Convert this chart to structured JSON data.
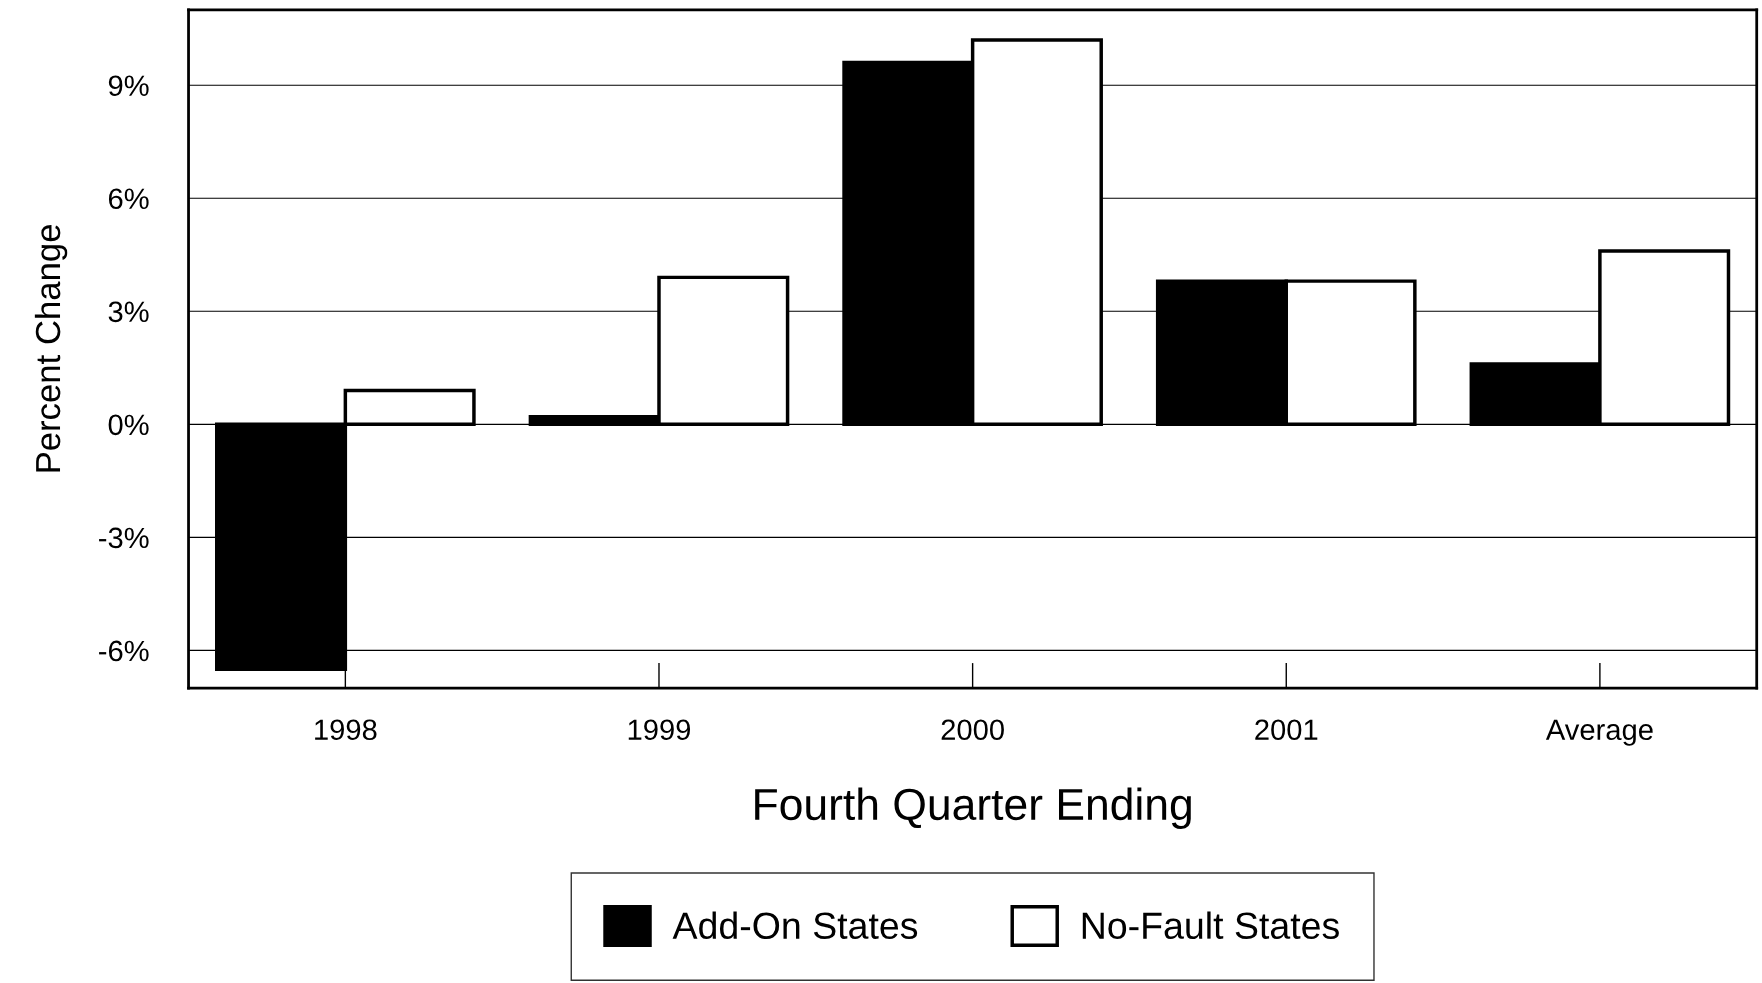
{
  "chart_data": {
    "type": "bar",
    "xlabel": "Fourth Quarter Ending",
    "ylabel": "Percent Change",
    "categories": [
      "1998",
      "1999",
      "2000",
      "2001",
      "Average"
    ],
    "series": [
      {
        "name": "Add-On States",
        "color": "#000000",
        "values": [
          -6.5,
          0.2,
          9.6,
          3.8,
          1.6
        ]
      },
      {
        "name": "No-Fault States",
        "color": "#ffffff",
        "values": [
          0.9,
          3.9,
          10.2,
          3.8,
          4.6
        ]
      }
    ],
    "ylim": [
      -7,
      11
    ],
    "yticks": [
      {
        "value": -6,
        "label": "-6%"
      },
      {
        "value": -3,
        "label": "-3%"
      },
      {
        "value": 0,
        "label": "0%"
      },
      {
        "value": 3,
        "label": "3%"
      },
      {
        "value": 6,
        "label": "6%"
      },
      {
        "value": 9,
        "label": "9%"
      }
    ],
    "grid": "y",
    "legend": "bottom"
  }
}
